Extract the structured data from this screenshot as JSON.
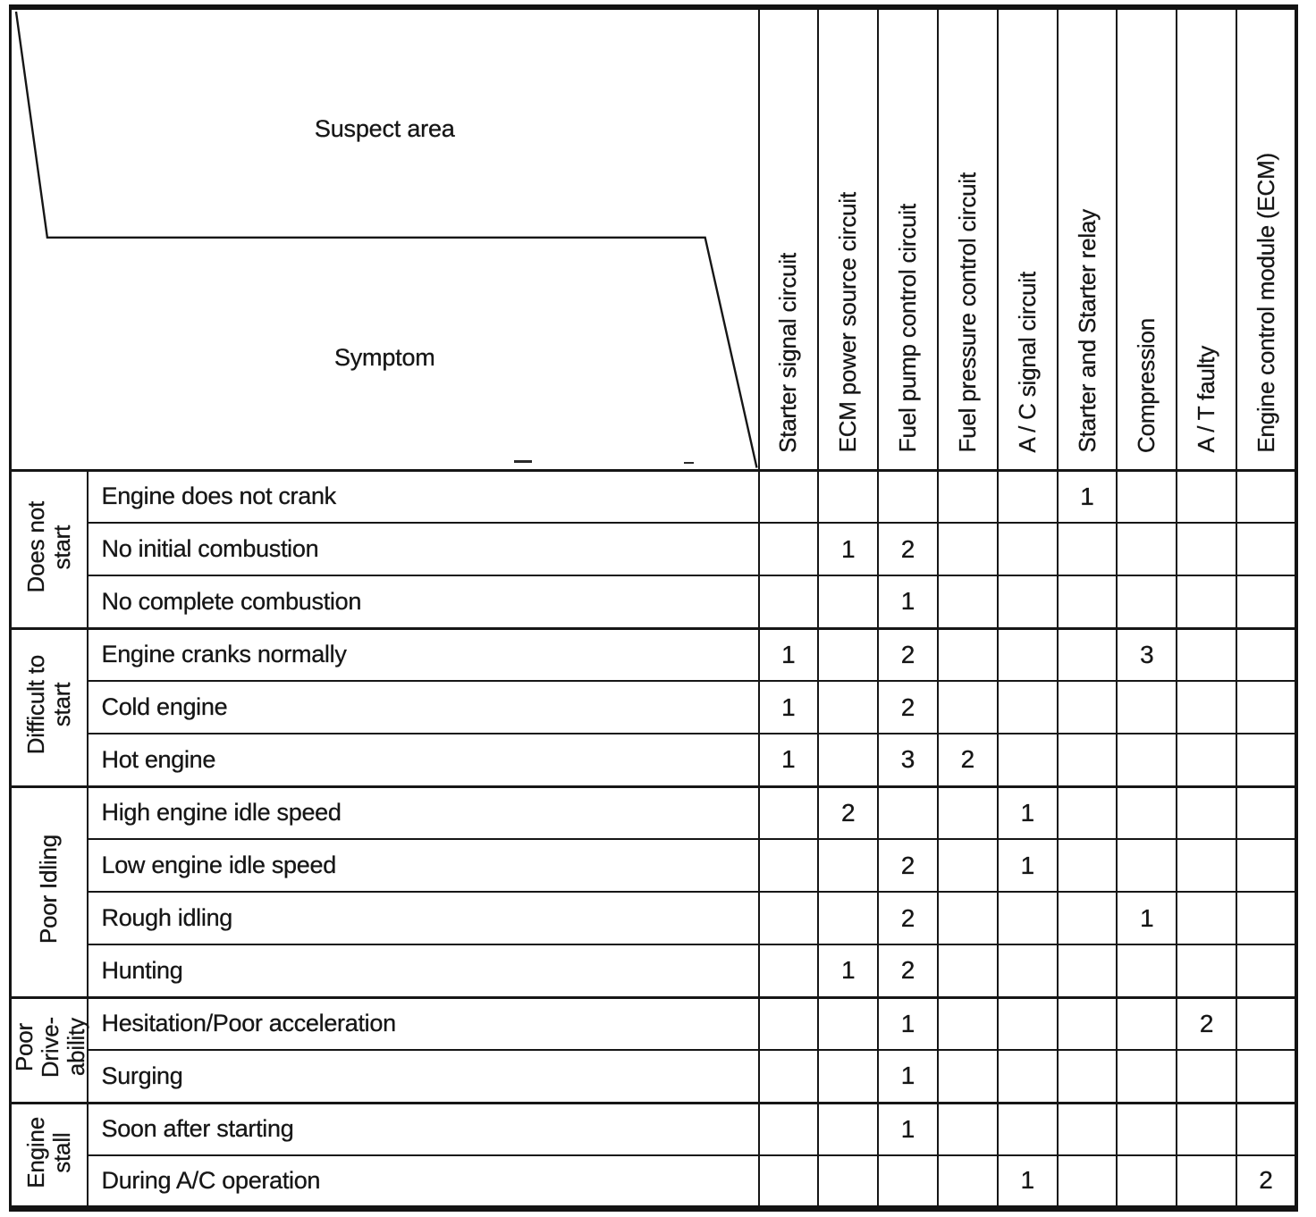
{
  "ink_color": "#161616",
  "header": {
    "suspect_area_label": "Suspect area",
    "symptom_label": "Symptom"
  },
  "suspect_columns": [
    "Starter signal circuit",
    "ECM power source circuit",
    "Fuel pump control circuit",
    "Fuel pressure control circuit",
    "A / C signal circuit",
    "Starter and Starter relay",
    "Compression",
    "A / T faulty",
    "Engine control module (ECM)"
  ],
  "symptom_groups": [
    {
      "label": "Does not\nstart",
      "rows": [
        {
          "symptom": "Engine does not crank",
          "values": [
            "",
            "",
            "",
            "",
            "",
            "1",
            "",
            "",
            ""
          ]
        },
        {
          "symptom": "No initial combustion",
          "values": [
            "",
            "1",
            "2",
            "",
            "",
            "",
            "",
            "",
            ""
          ]
        },
        {
          "symptom": "No complete combustion",
          "values": [
            "",
            "",
            "1",
            "",
            "",
            "",
            "",
            "",
            ""
          ]
        }
      ]
    },
    {
      "label": "Difficult to\nstart",
      "rows": [
        {
          "symptom": "Engine cranks normally",
          "values": [
            "1",
            "",
            "2",
            "",
            "",
            "",
            "3",
            "",
            ""
          ]
        },
        {
          "symptom": "Cold engine",
          "values": [
            "1",
            "",
            "2",
            "",
            "",
            "",
            "",
            "",
            ""
          ]
        },
        {
          "symptom": "Hot engine",
          "values": [
            "1",
            "",
            "3",
            "2",
            "",
            "",
            "",
            "",
            ""
          ]
        }
      ]
    },
    {
      "label": "Poor Idling",
      "rows": [
        {
          "symptom": "High engine idle speed",
          "values": [
            "",
            "2",
            "",
            "",
            "1",
            "",
            "",
            "",
            ""
          ]
        },
        {
          "symptom": "Low engine idle speed",
          "values": [
            "",
            "",
            "2",
            "",
            "1",
            "",
            "",
            "",
            ""
          ]
        },
        {
          "symptom": "Rough idling",
          "values": [
            "",
            "",
            "2",
            "",
            "",
            "",
            "1",
            "",
            ""
          ]
        },
        {
          "symptom": "Hunting",
          "values": [
            "",
            "1",
            "2",
            "",
            "",
            "",
            "",
            "",
            ""
          ]
        }
      ]
    },
    {
      "label": "Poor\nDrive-\nability",
      "rows": [
        {
          "symptom": "Hesitation/Poor acceleration",
          "values": [
            "",
            "",
            "1",
            "",
            "",
            "",
            "",
            "2",
            ""
          ]
        },
        {
          "symptom": "Surging",
          "values": [
            "",
            "",
            "1",
            "",
            "",
            "",
            "",
            "",
            ""
          ]
        }
      ]
    },
    {
      "label": "Engine\nstall",
      "rows": [
        {
          "symptom": "Soon after starting",
          "values": [
            "",
            "",
            "1",
            "",
            "",
            "",
            "",
            "",
            ""
          ]
        },
        {
          "symptom": "During A/C operation",
          "values": [
            "",
            "",
            "",
            "",
            "1",
            "",
            "",
            "",
            "2"
          ]
        }
      ]
    }
  ]
}
